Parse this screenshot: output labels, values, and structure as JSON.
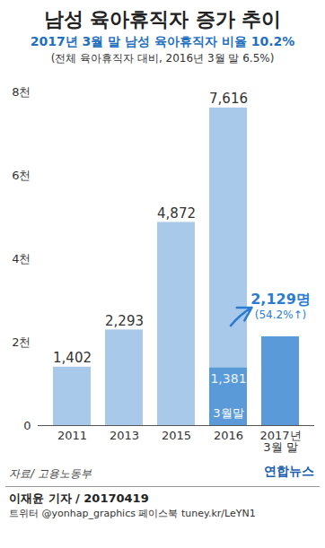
{
  "chart_data": {
    "type": "bar",
    "title": "남성 육아휴직자 증가 추이",
    "subtitle": [
      "2017년 3월 말 남성 육아휴직자 비율 10.2%",
      "(전체 육아휴직자 대비, 2016년 3월 말 6.5%)"
    ],
    "categories": [
      "2011",
      "2013",
      "2015",
      "2016",
      "2017년 3월 말"
    ],
    "values": [
      1402,
      2293,
      4872,
      7616,
      2129
    ],
    "value_labels": [
      "1,402",
      "2,293",
      "4,872",
      "7,616",
      "2,129명"
    ],
    "colors": [
      "#a9c9ea",
      "#a9c9ea",
      "#a9c9ea",
      "#a9c9ea",
      "#5b9ad8"
    ],
    "overlay": {
      "category": "2016",
      "value": 1381,
      "value_label": "1,381",
      "label": "3월말",
      "color": "#5b9ad8"
    },
    "annotation": "(54.2%↑)",
    "ylim": [
      0,
      8000
    ],
    "yticks": [
      0,
      {
        "value": 2000,
        "label": "2천"
      },
      {
        "value": 4000,
        "label": "4천"
      },
      {
        "value": 6000,
        "label": "6천"
      },
      {
        "value": 8000,
        "label": "8천"
      }
    ],
    "grid": false,
    "data_labels": true,
    "source": "자료/ 고용노동부",
    "footer": {
      "byline": "이재윤 기자 / 20170419",
      "social": "트위터 @yonhap_graphics 페이스북 tuney.kr/LeYN1",
      "logo": "연합뉴스"
    }
  }
}
